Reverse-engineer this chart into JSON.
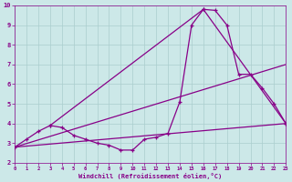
{
  "xlabel": "Windchill (Refroidissement éolien,°C)",
  "xlim": [
    0,
    23
  ],
  "ylim": [
    2,
    10
  ],
  "xticks": [
    0,
    1,
    2,
    3,
    4,
    5,
    6,
    7,
    8,
    9,
    10,
    11,
    12,
    13,
    14,
    15,
    16,
    17,
    18,
    19,
    20,
    21,
    22,
    23
  ],
  "yticks": [
    2,
    3,
    4,
    5,
    6,
    7,
    8,
    9,
    10
  ],
  "background_color": "#cce8e8",
  "grid_color": "#aacece",
  "line_color": "#880088",
  "line1_x": [
    0,
    1,
    2,
    3,
    4,
    5,
    6,
    7,
    8,
    9,
    10,
    11,
    12,
    13,
    14,
    15,
    16,
    17,
    18,
    19,
    20,
    21,
    22,
    23
  ],
  "line1_y": [
    2.8,
    3.2,
    3.6,
    3.9,
    3.8,
    3.4,
    3.2,
    3.0,
    2.9,
    2.65,
    2.65,
    3.2,
    3.3,
    3.5,
    5.1,
    9.0,
    9.8,
    9.75,
    9.0,
    6.5,
    6.5,
    5.8,
    5.0,
    4.0
  ],
  "line2_x": [
    0,
    23
  ],
  "line2_y": [
    2.8,
    4.0
  ],
  "line3_x": [
    0,
    23
  ],
  "line3_y": [
    2.8,
    7.0
  ],
  "line4_x": [
    3,
    16,
    23
  ],
  "line4_y": [
    3.9,
    9.8,
    4.0
  ]
}
